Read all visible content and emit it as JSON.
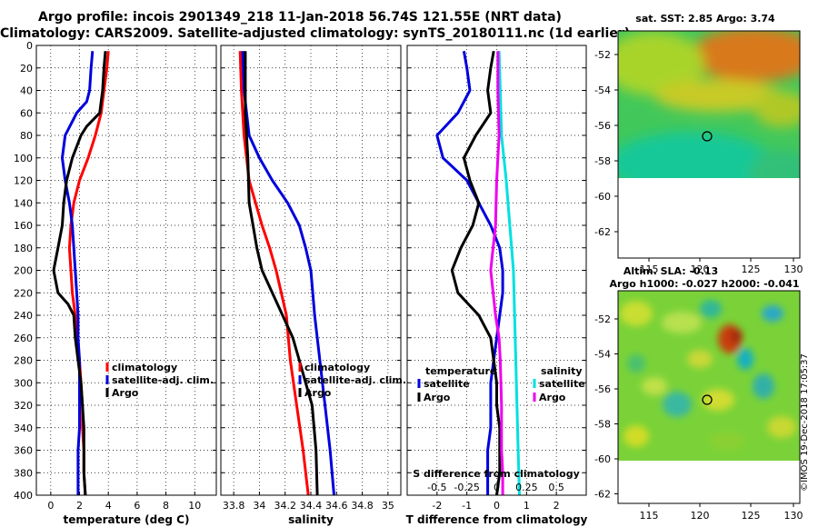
{
  "header": {
    "title_line1": "Argo profile: incois 2901349_218 11-Jan-2018 56.74S 121.55E (NRT data)",
    "title_line2": "Climatology: CARS2009. Satellite-adjusted climatology: synTS_20180111.nc (1d earlier)"
  },
  "maps": {
    "sst_title": "sat. SST: 2.85 Argo: 3.74",
    "sla_title1": "Altim. SLA: -0.13",
    "sla_title2": "Argo h1000: -0.027 h2000: -0.041",
    "lat_ticks": [
      "-52",
      "-54",
      "-56",
      "-58",
      "-60",
      "-62"
    ],
    "lon_ticks": [
      "115",
      "120",
      "125",
      "130"
    ],
    "credit": "©IMOS 19-Dec-2018 17:05:37",
    "colors": {
      "sst_warm": "#d86a10",
      "sst_mid": "#9ad020",
      "sst_cold": "#10c890",
      "sla_high": "#c83a00",
      "sla_mid": "#6cd040",
      "sla_low": "#18b0b8"
    }
  },
  "chart_data": [
    {
      "type": "line",
      "name": "temperature-panel",
      "xlabel": "temperature (deg C)",
      "ylabel": "depth",
      "xlim": [
        -1,
        11.5
      ],
      "ylim": [
        400,
        0
      ],
      "xticks": [
        0,
        2,
        4,
        6,
        8,
        10
      ],
      "yticks": [
        0,
        20,
        40,
        60,
        80,
        100,
        120,
        140,
        160,
        180,
        200,
        220,
        240,
        260,
        280,
        300,
        320,
        340,
        360,
        380,
        400
      ],
      "grid": true,
      "legend": [
        "climatology",
        "satellite-adj. clim.",
        "Argo"
      ],
      "series": [
        {
          "name": "climatology",
          "color": "#ff0000",
          "points": [
            [
              4.0,
              5
            ],
            [
              3.9,
              20
            ],
            [
              3.7,
              40
            ],
            [
              3.5,
              60
            ],
            [
              3.1,
              80
            ],
            [
              2.6,
              100
            ],
            [
              2.0,
              120
            ],
            [
              1.6,
              140
            ],
            [
              1.4,
              160
            ],
            [
              1.3,
              180
            ],
            [
              1.4,
              200
            ],
            [
              1.5,
              220
            ],
            [
              1.7,
              240
            ],
            [
              1.8,
              260
            ],
            [
              2.0,
              280
            ],
            [
              2.1,
              300
            ],
            [
              2.2,
              320
            ],
            [
              2.2,
              340
            ],
            [
              2.3,
              360
            ],
            [
              2.3,
              380
            ],
            [
              2.4,
              400
            ]
          ]
        },
        {
          "name": "satellite-adj. clim.",
          "color": "#0000dd",
          "points": [
            [
              2.9,
              5
            ],
            [
              2.8,
              20
            ],
            [
              2.7,
              40
            ],
            [
              2.5,
              50
            ],
            [
              1.8,
              60
            ],
            [
              1.0,
              80
            ],
            [
              0.8,
              100
            ],
            [
              1.0,
              120
            ],
            [
              1.3,
              140
            ],
            [
              1.5,
              160
            ],
            [
              1.6,
              180
            ],
            [
              1.7,
              200
            ],
            [
              1.8,
              220
            ],
            [
              1.9,
              240
            ],
            [
              1.9,
              260
            ],
            [
              2.0,
              280
            ],
            [
              2.0,
              300
            ],
            [
              2.0,
              320
            ],
            [
              2.0,
              340
            ],
            [
              1.9,
              360
            ],
            [
              1.9,
              380
            ],
            [
              1.9,
              400
            ]
          ]
        },
        {
          "name": "Argo",
          "color": "#000000",
          "points": [
            [
              3.8,
              5
            ],
            [
              3.7,
              20
            ],
            [
              3.6,
              40
            ],
            [
              3.4,
              60
            ],
            [
              2.5,
              72
            ],
            [
              2.1,
              80
            ],
            [
              1.5,
              100
            ],
            [
              1.1,
              120
            ],
            [
              0.9,
              140
            ],
            [
              0.8,
              160
            ],
            [
              0.5,
              180
            ],
            [
              0.2,
              200
            ],
            [
              0.5,
              220
            ],
            [
              1.2,
              230
            ],
            [
              1.6,
              240
            ],
            [
              1.7,
              260
            ],
            [
              1.9,
              280
            ],
            [
              2.1,
              300
            ],
            [
              2.2,
              320
            ],
            [
              2.3,
              340
            ],
            [
              2.3,
              360
            ],
            [
              2.3,
              380
            ],
            [
              2.4,
              400
            ]
          ]
        }
      ]
    },
    {
      "type": "line",
      "name": "salinity-panel",
      "xlabel": "salinity",
      "ylabel": "depth",
      "xlim": [
        33.7,
        35.1
      ],
      "ylim": [
        400,
        0
      ],
      "xticks": [
        33.8,
        34,
        34.2,
        34.4,
        34.6,
        34.8,
        35
      ],
      "xtick_labels": [
        "33.8",
        "34",
        "34.2",
        "34.4",
        "34.6",
        "34.8",
        "35"
      ],
      "grid": true,
      "legend": [
        "climatology",
        "satellite-adj. clim.",
        "Argo"
      ],
      "series": [
        {
          "name": "climatology",
          "color": "#ff0000",
          "points": [
            [
              33.85,
              5
            ],
            [
              33.86,
              40
            ],
            [
              33.88,
              80
            ],
            [
              33.92,
              120
            ],
            [
              33.97,
              140
            ],
            [
              34.02,
              160
            ],
            [
              34.08,
              180
            ],
            [
              34.13,
              200
            ],
            [
              34.17,
              220
            ],
            [
              34.21,
              240
            ],
            [
              34.24,
              280
            ],
            [
              34.29,
              320
            ],
            [
              34.34,
              360
            ],
            [
              34.38,
              400
            ]
          ]
        },
        {
          "name": "satellite-adj. clim.",
          "color": "#0000dd",
          "points": [
            [
              33.87,
              5
            ],
            [
              33.88,
              40
            ],
            [
              33.92,
              80
            ],
            [
              34.0,
              100
            ],
            [
              34.1,
              120
            ],
            [
              34.22,
              140
            ],
            [
              34.31,
              160
            ],
            [
              34.36,
              180
            ],
            [
              34.4,
              200
            ],
            [
              34.43,
              240
            ],
            [
              34.47,
              280
            ],
            [
              34.51,
              320
            ],
            [
              34.55,
              360
            ],
            [
              34.58,
              400
            ]
          ]
        },
        {
          "name": "Argo",
          "color": "#000000",
          "points": [
            [
              33.89,
              5
            ],
            [
              33.89,
              60
            ],
            [
              33.9,
              80
            ],
            [
              33.91,
              100
            ],
            [
              33.92,
              140
            ],
            [
              33.95,
              160
            ],
            [
              33.98,
              180
            ],
            [
              34.02,
              200
            ],
            [
              34.1,
              220
            ],
            [
              34.18,
              240
            ],
            [
              34.26,
              260
            ],
            [
              34.31,
              280
            ],
            [
              34.36,
              300
            ],
            [
              34.41,
              320
            ],
            [
              34.44,
              360
            ],
            [
              34.45,
              400
            ]
          ]
        }
      ]
    },
    {
      "type": "line",
      "name": "difference-panel",
      "xlabel": "T difference from climatology",
      "x2label": "S difference from climatology",
      "ylabel": "depth",
      "xlim": [
        -3,
        3
      ],
      "ylim": [
        400,
        0
      ],
      "xticks": [
        -2,
        -1,
        0,
        1,
        2
      ],
      "xtick_labels": [
        "-2",
        "-1",
        "0",
        "1",
        "2"
      ],
      "x2ticks": [
        -0.5,
        -0.25,
        0,
        0.25,
        0.5
      ],
      "x2tick_labels": [
        "-0.5",
        "-0.25",
        "0",
        "0.25",
        "0.5"
      ],
      "x2lim": [
        -0.75,
        0.75
      ],
      "grid": true,
      "legend_temperature_title": "temperature",
      "legend_salinity_title": "salinity",
      "legend_labels": [
        "satellite",
        "Argo",
        "satellite",
        "Argo"
      ],
      "series": [
        {
          "name": "temperature satellite",
          "axis": "T",
          "color": "#0000dd",
          "points": [
            [
              -1.1,
              5
            ],
            [
              -1.0,
              20
            ],
            [
              -0.9,
              40
            ],
            [
              -1.3,
              60
            ],
            [
              -2.0,
              80
            ],
            [
              -1.8,
              100
            ],
            [
              -1.0,
              120
            ],
            [
              -0.6,
              140
            ],
            [
              -0.2,
              160
            ],
            [
              0.1,
              180
            ],
            [
              0.2,
              200
            ],
            [
              0.2,
              220
            ],
            [
              0.1,
              240
            ],
            [
              0.0,
              260
            ],
            [
              -0.1,
              280
            ],
            [
              -0.2,
              300
            ],
            [
              -0.2,
              320
            ],
            [
              -0.2,
              340
            ],
            [
              -0.3,
              360
            ],
            [
              -0.3,
              380
            ],
            [
              -0.3,
              400
            ]
          ]
        },
        {
          "name": "temperature Argo",
          "axis": "T",
          "color": "#000000",
          "points": [
            [
              -0.1,
              5
            ],
            [
              -0.2,
              20
            ],
            [
              -0.3,
              40
            ],
            [
              -0.2,
              60
            ],
            [
              -0.7,
              80
            ],
            [
              -1.1,
              100
            ],
            [
              -0.9,
              120
            ],
            [
              -0.6,
              140
            ],
            [
              -0.8,
              160
            ],
            [
              -1.2,
              180
            ],
            [
              -1.5,
              200
            ],
            [
              -1.3,
              220
            ],
            [
              -0.6,
              240
            ],
            [
              -0.2,
              260
            ],
            [
              -0.1,
              280
            ],
            [
              0.0,
              300
            ],
            [
              0.0,
              320
            ],
            [
              0.1,
              340
            ],
            [
              0.1,
              360
            ],
            [
              0.1,
              380
            ],
            [
              0.0,
              400
            ]
          ]
        },
        {
          "name": "salinity satellite",
          "axis": "S",
          "color": "#00e0e0",
          "points": [
            [
              0.02,
              5
            ],
            [
              0.03,
              40
            ],
            [
              0.04,
              80
            ],
            [
              0.08,
              120
            ],
            [
              0.11,
              160
            ],
            [
              0.14,
              200
            ],
            [
              0.15,
              240
            ],
            [
              0.16,
              280
            ],
            [
              0.17,
              320
            ],
            [
              0.18,
              360
            ],
            [
              0.19,
              400
            ]
          ]
        },
        {
          "name": "salinity Argo",
          "axis": "S",
          "color": "#ee00ee",
          "points": [
            [
              0.01,
              5
            ],
            [
              0.01,
              40
            ],
            [
              0.02,
              80
            ],
            [
              0.0,
              120
            ],
            [
              -0.01,
              160
            ],
            [
              -0.04,
              190
            ],
            [
              -0.05,
              200
            ],
            [
              -0.03,
              220
            ],
            [
              -0.01,
              240
            ],
            [
              0.02,
              260
            ],
            [
              0.03,
              280
            ],
            [
              0.04,
              320
            ],
            [
              0.04,
              360
            ],
            [
              0.05,
              380
            ],
            [
              0.05,
              400
            ]
          ]
        }
      ]
    }
  ]
}
